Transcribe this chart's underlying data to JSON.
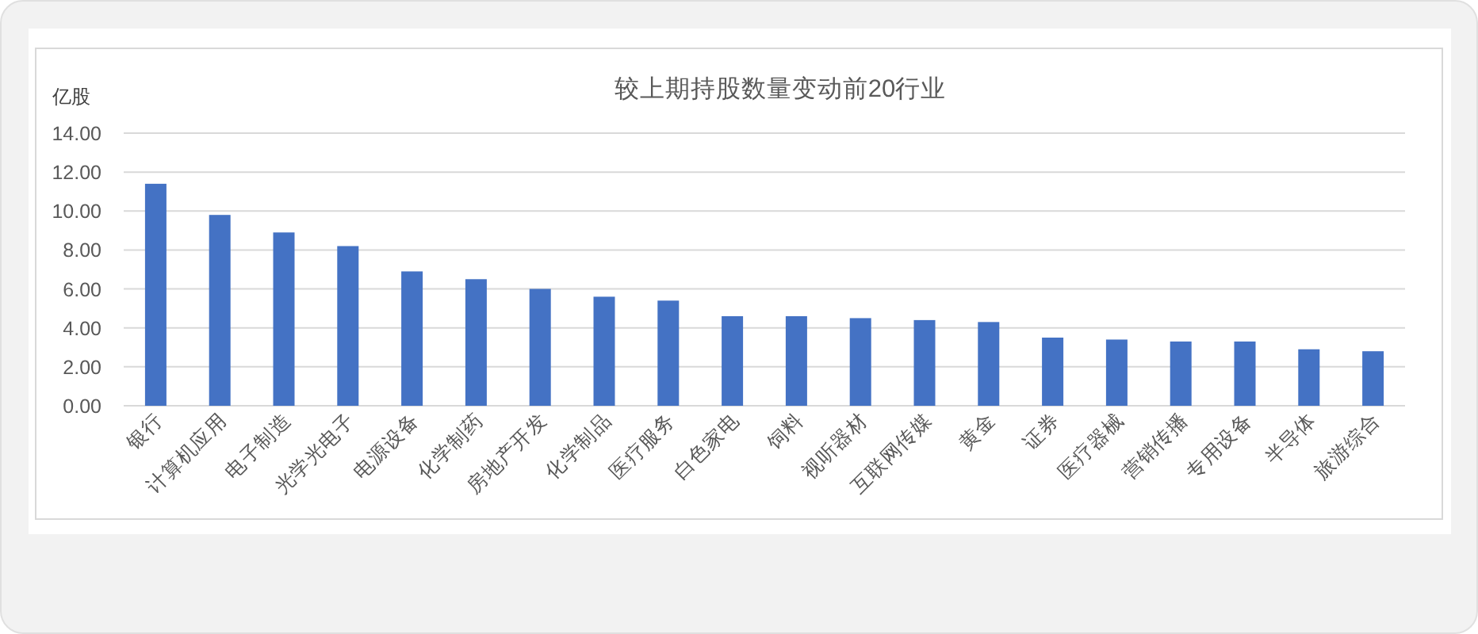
{
  "chart_data": {
    "type": "bar",
    "title": "较上期持股数量变动前20行业",
    "ylabel": "亿股",
    "categories": [
      "银行",
      "计算机应用",
      "电子制造",
      "光学光电子",
      "电源设备",
      "化学制药",
      "房地产开发",
      "化学制品",
      "医疗服务",
      "白色家电",
      "饲料",
      "视听器材",
      "互联网传媒",
      "黄金",
      "证券",
      "医疗器械",
      "营销传播",
      "专用设备",
      "半导体",
      "旅游综合"
    ],
    "values": [
      11.4,
      9.8,
      8.9,
      8.2,
      6.9,
      6.5,
      6.0,
      5.6,
      5.4,
      4.6,
      4.6,
      4.5,
      4.4,
      4.3,
      3.5,
      3.4,
      3.3,
      3.3,
      2.9,
      2.8
    ],
    "color": "#4472c4",
    "ylim": [
      0,
      14
    ],
    "yticks": [
      {
        "value": 0,
        "label": "0.00"
      },
      {
        "value": 2,
        "label": "2.00"
      },
      {
        "value": 4,
        "label": "4.00"
      },
      {
        "value": 6,
        "label": "6.00"
      },
      {
        "value": 8,
        "label": "8.00"
      },
      {
        "value": 10,
        "label": "10.00"
      },
      {
        "value": 12,
        "label": "12.00"
      },
      {
        "value": 14,
        "label": "14.00"
      }
    ],
    "grid": "y"
  }
}
